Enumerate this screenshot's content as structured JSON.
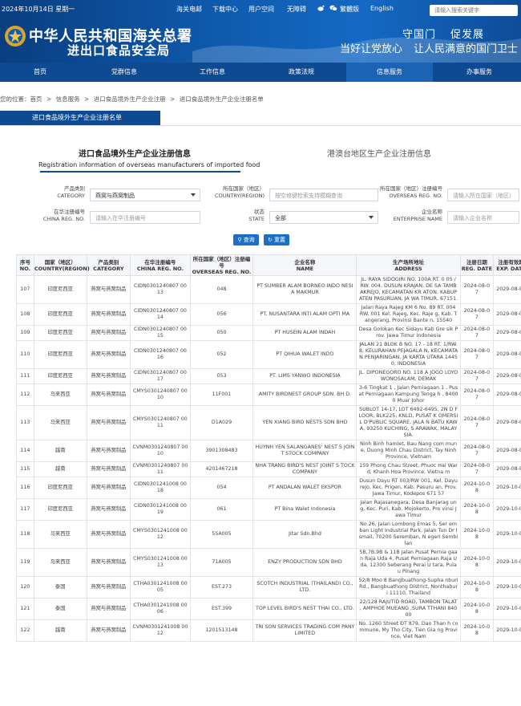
{
  "topbar": {
    "date": "2024年10月14日 星期一",
    "links": [
      "海关电邮",
      "下载中心",
      "用户空间",
      "无障碍"
    ],
    "icons": [
      "weibo-icon",
      "wechat-icon"
    ],
    "traditional": "繁體版",
    "english": "English",
    "search_placeholder": "请输入搜索关键字"
  },
  "brand": {
    "line1": "中华人民共和国海关总署",
    "line2": "进出口食品安全局",
    "slogan_top": [
      "守国门",
      "促发展"
    ],
    "slogan_bottom": [
      "当好让党放心",
      "让人民满意的国门卫士"
    ]
  },
  "nav": {
    "items": [
      "首页",
      "党群信息",
      "工作信息",
      "政策法规",
      "信息服务",
      "办事服务"
    ],
    "active_index": 4
  },
  "breadcrumb": [
    "您的位置：首页",
    ">",
    "信息服务",
    ">",
    "进口食品境外生产企业注册",
    ">",
    "进口食品境外生产企业注册名单"
  ],
  "section_tab": "进口食品境外生产企业注册名单",
  "panel": {
    "title_cn": "进口食品境外生产企业注册信息",
    "title_en": "Registration information of overseas manufacturers of imported food",
    "tab2": "港澳台地区生产企业注册信息"
  },
  "form": {
    "category_label_cn": "产品类别",
    "category_label_en": "CATEGORY",
    "category_value": "燕窝与燕窝制品",
    "country_label_cn": "所在国家（地区）",
    "country_label_en": "COUNTRY(REGION)",
    "country_placeholder": "按空格键检索支持模糊查询",
    "overseas_label_cn": "所在国家（地区）注册编号",
    "overseas_label_en": "OVERSEAS REG. NO.",
    "overseas_placeholder": "请输入所在国家（地区）",
    "china_label_cn": "在华注册编号",
    "china_label_en": "CHINA REG. NO.",
    "china_placeholder": "请输入在华注册编号",
    "state_label_cn": "状态",
    "state_label_en": "STATE",
    "state_value": "全部",
    "name_label_cn": "企业名称",
    "name_label_en": "ENTERPRISE NAME",
    "name_placeholder": "请输入企业名称",
    "query_button": "查询",
    "reset_button": "重置"
  },
  "table": {
    "headers": [
      {
        "cn": "序号",
        "en": "NO."
      },
      {
        "cn": "国家（地区）",
        "en": "COUNTRY(REGION)"
      },
      {
        "cn": "产品类别",
        "en": "CATEGORY"
      },
      {
        "cn": "在华注册编号",
        "en": "CHINA REG. NO."
      },
      {
        "cn": "所在国家（地区）注册编号",
        "en": "OVERSEAS REG. NO."
      },
      {
        "cn": "企业名称",
        "en": "NAME"
      },
      {
        "cn": "生产场所地址",
        "en": "ADDRESS"
      },
      {
        "cn": "注册日期",
        "en": "REG. DATE"
      },
      {
        "cn": "注册有效期",
        "en": "EXP. DATE"
      }
    ],
    "rows": [
      [
        "107",
        "印度尼西亚",
        "燕窝与燕窝制品",
        "CIDN0301240807 0013",
        "048",
        "PT SUMBER ALAM BORNEO INDO NESIA MAKMUR",
        "JL. RAYA SIDOGIRI NO. 100A RT. 0 05 / RW. 004, DUSUN KRAJAN, DE SA TAMBAKREJO, KECAMATAN KR ATON, KABUPATEN PASURUAN, JA WA TIMUR, 67151.",
        "2024-08-07",
        "2029-08-07"
      ],
      [
        "108",
        "印度尼西亚",
        "燕窝与燕窝制品",
        "CIDN0301240807 0014",
        "056",
        "PT. NUSANTARA INTI ALAM OPTI MA",
        "Jalan Raya Rajeg KM 6 No. 89 RT. 004 RW. 001 Kel. Rajeg, Kec. Raje g, Kab. Tangerang, Provinsi Bante n, 15540",
        "2024-08-07",
        "2029-08-07"
      ],
      [
        "109",
        "印度尼西亚",
        "燕窝与燕窝制品",
        "CIDN0301240807 0015",
        "050",
        "PT HUSEIN ALAM INDAH",
        "Desa Golokan Kec Sidayu Kab Gre sik Prov. Jawa Timur Indonesia",
        "2024-08-07",
        "2029-08-07"
      ],
      [
        "110",
        "印度尼西亚",
        "燕窝与燕窝制品",
        "CIDN0301240807 0016",
        "052",
        "PT QIHUA WALET INDO",
        "JALAN 21 BLOK B NO. 17 - 18 RT. 1/RW. 8, KELURAHAN PEJAGALA N, KECAMATAN PENJARINGAN, JA KARTA UTARA 14450, INDONESIA",
        "2024-08-07",
        "2029-08-07"
      ],
      [
        "111",
        "印度尼西亚",
        "燕窝与燕窝制品",
        "CIDN0301240807 0017",
        "053",
        "PT. LIMS YANWO INDONESIA",
        "JL. DIPONEGORO NO. 118 A JOGO LOYO WONOSALAM, DEMAK",
        "2024-08-07",
        "2029-08-07"
      ],
      [
        "112",
        "马来西亚",
        "燕窝与燕窝制品",
        "CMYS0301240807 0010",
        "11F001",
        "AMITY BIRDNEST GROUP SDN. BH D.",
        "3-6 Tingkat 1 , Jalan Perniagaan 1 , Pusat Perniagaan Kampung Tenga h , 84000 Muar Johor",
        "2024-08-07",
        "2029-08-07"
      ],
      [
        "113",
        "马来西亚",
        "燕窝与燕窝制品",
        "CMYS0301240807 0011",
        "D1A029",
        "YEN XIANG BIRD NESTS SDN BHD",
        "SUBLOT 14-17, LOT 6492-6495, 2N D FLOOR, BLK225, KNLD, PUSAT K OMERSIL D'PUBLIC SQUARE, JALA N BATU KAWA, 93250 KUCHING, S ARAWAK, MALAYSIA.",
        "2024-08-07",
        "2029-08-07"
      ],
      [
        "114",
        "越南",
        "燕窝与燕窝制品",
        "CVNM0301240807 0010",
        "3901308483",
        "HUYNH YEN SALANGANES' NEST S JOINT STOCK COMPANY",
        "Ninh Binh hamlet, Bau Nang com mune, Duong Minh Chau District, Tay Ninh Province, Vietnam",
        "2024-08-07",
        "2029-08-07"
      ],
      [
        "115",
        "越南",
        "燕窝与燕窝制品",
        "CVNM0301240807 0011",
        "4201467218",
        "NHA TRANG BIRD'S NEST JOINT S TOCK COMPANY",
        "159 Phong Chau Street, Phuoc Hai Ward, Khanh Hoa Province, Vietna m",
        "2024-08-07",
        "2029-08-07"
      ],
      [
        "116",
        "印度尼西亚",
        "燕窝与燕窝制品",
        "CIDN0301241008 0018",
        "054",
        "PT ANDALAN WALET EKSPOR",
        "Dusun Dayu RT 003/RW 001, Kel. Dayurejo, Kec. Prigen, Kab. Pasuru an, Prov. Jawa Timur, Kodepos 671 57",
        "2024-10-08",
        "2029-10-08"
      ],
      [
        "117",
        "印度尼西亚",
        "燕窝与燕窝制品",
        "CIDN0301241008 0019",
        "061",
        "PT Bina Walet Indonesia",
        "Jalan Rajasanegara, Desa Banjarag ung, Kec. Puri, Kab. Mojokerto, Pro vinsi Jawa Timur",
        "2024-10-08",
        "2029-10-08"
      ],
      [
        "118",
        "马来西亚",
        "燕窝与燕窝制品",
        "CMYS0301241008 0012",
        "55A005",
        "Jitar Sdn.Bhd",
        "No 26, Jalan Lombong Emas 5, Ser emban Light Industrial Park, Jalan Tun Dr Ismail, 70200 Seremban, N egeri Sembilan",
        "2024-10-08",
        "2029-10-08"
      ],
      [
        "119",
        "马来西亚",
        "燕窝与燕窝制品",
        "CMYS0301241008 0013",
        "71A005",
        "ENZY PRODUCTION SDN BHD",
        "5B,7B,9B & 11B Jalan Pusat Pernia gaan Raja Uda 4, Pusat Perniagaan Raja Uda, 12300 Seberang Perai U tara, Pulau Pinang",
        "2024-10-08",
        "2029-10-08"
      ],
      [
        "120",
        "泰国",
        "燕窝与燕窝制品",
        "CTHA0301241008 0005",
        "EST.273",
        "SCOTCH INDUSTRIAL (THAILAND) CO., LTD.",
        "52/8 Moo 8 Bangbuathong-Supha nburi Rd., Bangbuathong District, Nonthaburi 11110, Thailand",
        "2024-10-08",
        "2029-10-08"
      ],
      [
        "121",
        "泰国",
        "燕窝与燕窝制品",
        "CTHA0301241008 0006",
        "EST.399",
        "TOP LEVEL BIRD'S NEST THAI CO., LTD.",
        "22/128 RAJUTID ROAD, TAMBON TALAT , AMPHOE MUEANG ,SURA TTHANI 84000",
        "2024-10-08",
        "2029-10-08"
      ],
      [
        "122",
        "越南",
        "燕窝与燕窝制品",
        "CVNM0301241008 0012",
        "1201513148",
        "TRI SON SERVICES TRADING COM PANY LIMITED",
        "No. 1260 Street ĐT 879, Dao Than h commune, My Tho City, Tien Gia ng Province, Viet Nam",
        "2024-10-08",
        "2029-10-08"
      ]
    ]
  }
}
